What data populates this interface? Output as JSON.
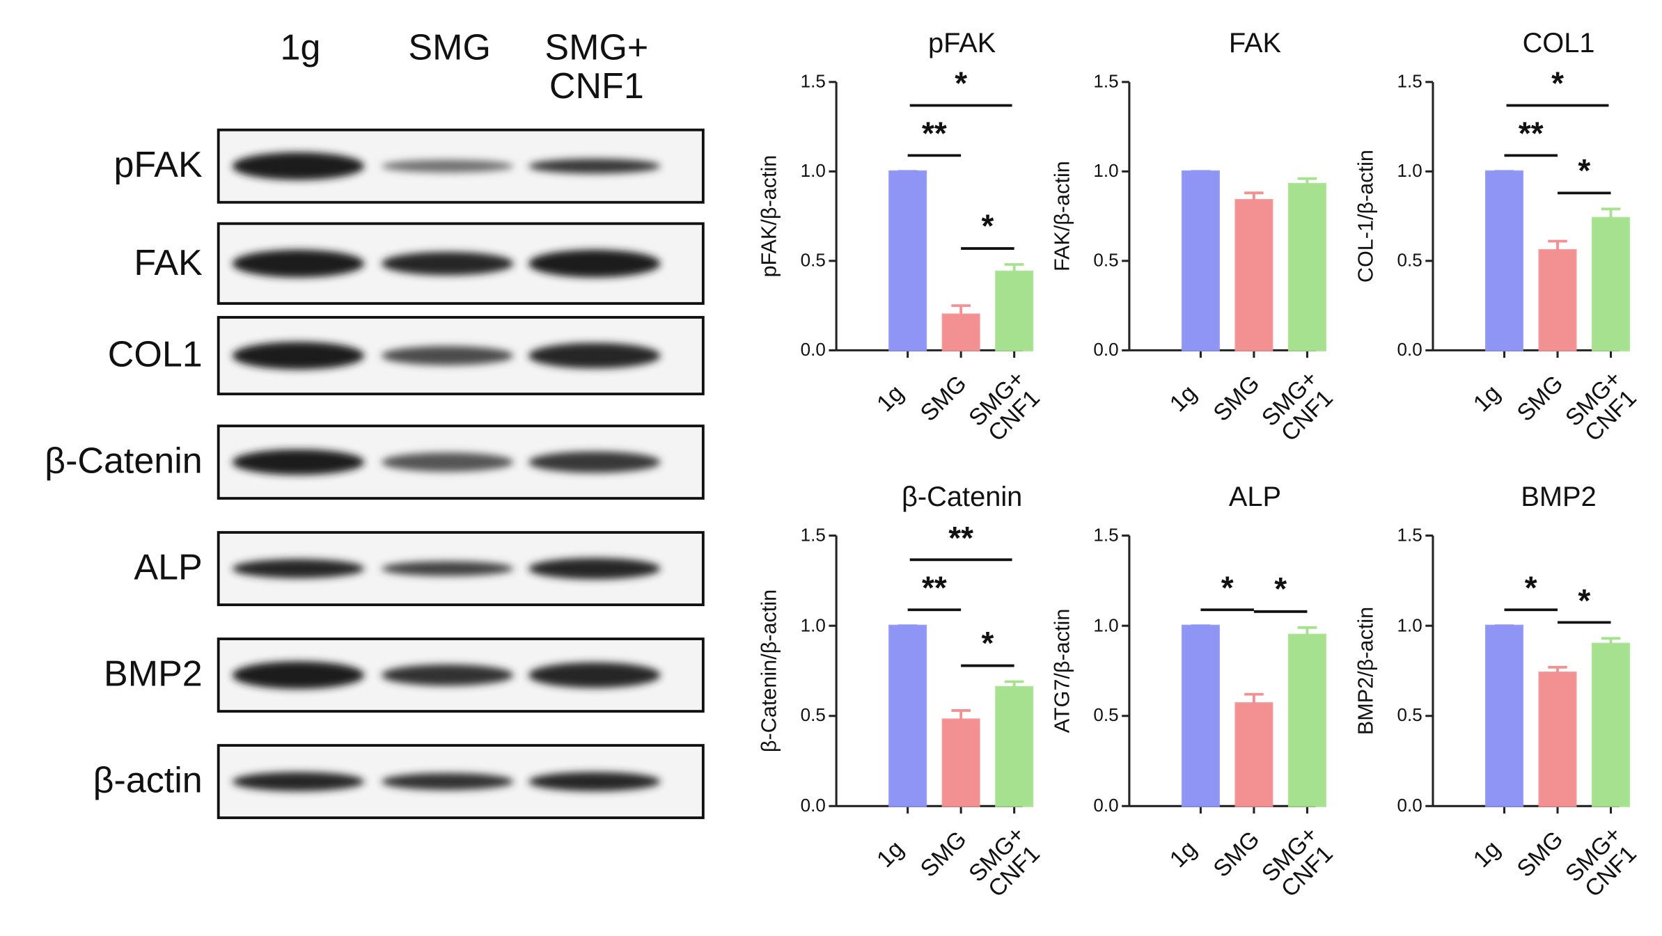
{
  "blot": {
    "lanes": [
      "1g",
      "SMG",
      "SMG+ CNF1"
    ],
    "rows": [
      "pFAK",
      "FAK",
      "COL1",
      "β-Catenin",
      "ALP",
      "BMP2",
      "β-actin"
    ]
  },
  "chart_data": [
    {
      "type": "bar",
      "title": "pFAK",
      "y_label": "pFAK/β-actin",
      "categories": [
        "1g",
        "SMG",
        "SMG+ CNF1"
      ],
      "values": [
        1.0,
        0.2,
        0.44
      ],
      "errors": [
        0,
        0.05,
        0.04
      ],
      "colors": [
        "#8f95f5",
        "#f29092",
        "#a6e190"
      ],
      "ylim": [
        0,
        1.5
      ],
      "yticks": [
        {
          "value": 0,
          "label": "0.0"
        },
        0.5,
        {
          "value": 1,
          "label": "1.0"
        },
        1.5
      ],
      "grid": false,
      "annotations": [
        {
          "text": "**",
          "between": [
            0,
            1
          ]
        },
        {
          "text": "*",
          "between": [
            1,
            2
          ]
        },
        {
          "text": "*",
          "between": [
            0,
            2
          ]
        }
      ]
    },
    {
      "type": "bar",
      "title": "FAK",
      "y_label": "FAK/β-actin",
      "categories": [
        "1g",
        "SMG",
        "SMG+ CNF1"
      ],
      "values": [
        1.0,
        0.84,
        0.93
      ],
      "errors": [
        0,
        0.04,
        0.03
      ],
      "colors": [
        "#8f95f5",
        "#f29092",
        "#a6e190"
      ],
      "ylim": [
        0,
        1.5
      ],
      "yticks": [
        {
          "value": 0,
          "label": "0.0"
        },
        0.5,
        {
          "value": 1,
          "label": "1.0"
        },
        1.5
      ],
      "grid": false,
      "annotations": []
    },
    {
      "type": "bar",
      "title": "COL1",
      "y_label": "COL-1/β-actin",
      "categories": [
        "1g",
        "SMG",
        "SMG+ CNF1"
      ],
      "values": [
        1.0,
        0.56,
        0.74
      ],
      "errors": [
        0,
        0.05,
        0.05
      ],
      "colors": [
        "#8f95f5",
        "#f29092",
        "#a6e190"
      ],
      "ylim": [
        0,
        1.5
      ],
      "yticks": [
        {
          "value": 0,
          "label": "0.0"
        },
        0.5,
        {
          "value": 1,
          "label": "1.0"
        },
        1.5
      ],
      "grid": false,
      "annotations": [
        {
          "text": "**",
          "between": [
            0,
            1
          ]
        },
        {
          "text": "*",
          "between": [
            1,
            2
          ]
        },
        {
          "text": "*",
          "between": [
            0,
            2
          ]
        }
      ]
    },
    {
      "type": "bar",
      "title": "β-Catenin",
      "y_label": "β-Catenin/β-actin",
      "categories": [
        "1g",
        "SMG",
        "SMG+ CNF1"
      ],
      "values": [
        1.0,
        0.48,
        0.66
      ],
      "errors": [
        0,
        0.05,
        0.03
      ],
      "colors": [
        "#8f95f5",
        "#f29092",
        "#a6e190"
      ],
      "ylim": [
        0,
        1.5
      ],
      "yticks": [
        {
          "value": 0,
          "label": "0.0"
        },
        0.5,
        {
          "value": 1,
          "label": "1.0"
        },
        1.5
      ],
      "grid": false,
      "annotations": [
        {
          "text": "**",
          "between": [
            0,
            1
          ]
        },
        {
          "text": "*",
          "between": [
            1,
            2
          ]
        },
        {
          "text": "**",
          "between": [
            0,
            2
          ]
        }
      ]
    },
    {
      "type": "bar",
      "title": "ALP",
      "y_label": "ATG7/β-actin",
      "categories": [
        "1g",
        "SMG",
        "SMG+ CNF1"
      ],
      "values": [
        1.0,
        0.57,
        0.95
      ],
      "errors": [
        0,
        0.05,
        0.04
      ],
      "colors": [
        "#8f95f5",
        "#f29092",
        "#a6e190"
      ],
      "ylim": [
        0,
        1.5
      ],
      "yticks": [
        {
          "value": 0,
          "label": "0.0"
        },
        0.5,
        {
          "value": 1,
          "label": "1.0"
        },
        1.5
      ],
      "grid": false,
      "annotations": [
        {
          "text": "*",
          "between": [
            0,
            1
          ]
        },
        {
          "text": "*",
          "between": [
            1,
            2
          ]
        }
      ]
    },
    {
      "type": "bar",
      "title": "BMP2",
      "y_label": "BMP2/β-actin",
      "categories": [
        "1g",
        "SMG",
        "SMG+ CNF1"
      ],
      "values": [
        1.0,
        0.74,
        0.9
      ],
      "errors": [
        0,
        0.03,
        0.03
      ],
      "colors": [
        "#8f95f5",
        "#f29092",
        "#a6e190"
      ],
      "ylim": [
        0,
        1.5
      ],
      "yticks": [
        {
          "value": 0,
          "label": "0.0"
        },
        0.5,
        {
          "value": 1,
          "label": "1.0"
        },
        1.5
      ],
      "grid": false,
      "annotations": [
        {
          "text": "*",
          "between": [
            0,
            1
          ]
        },
        {
          "text": "*",
          "between": [
            1,
            2
          ]
        }
      ]
    }
  ]
}
